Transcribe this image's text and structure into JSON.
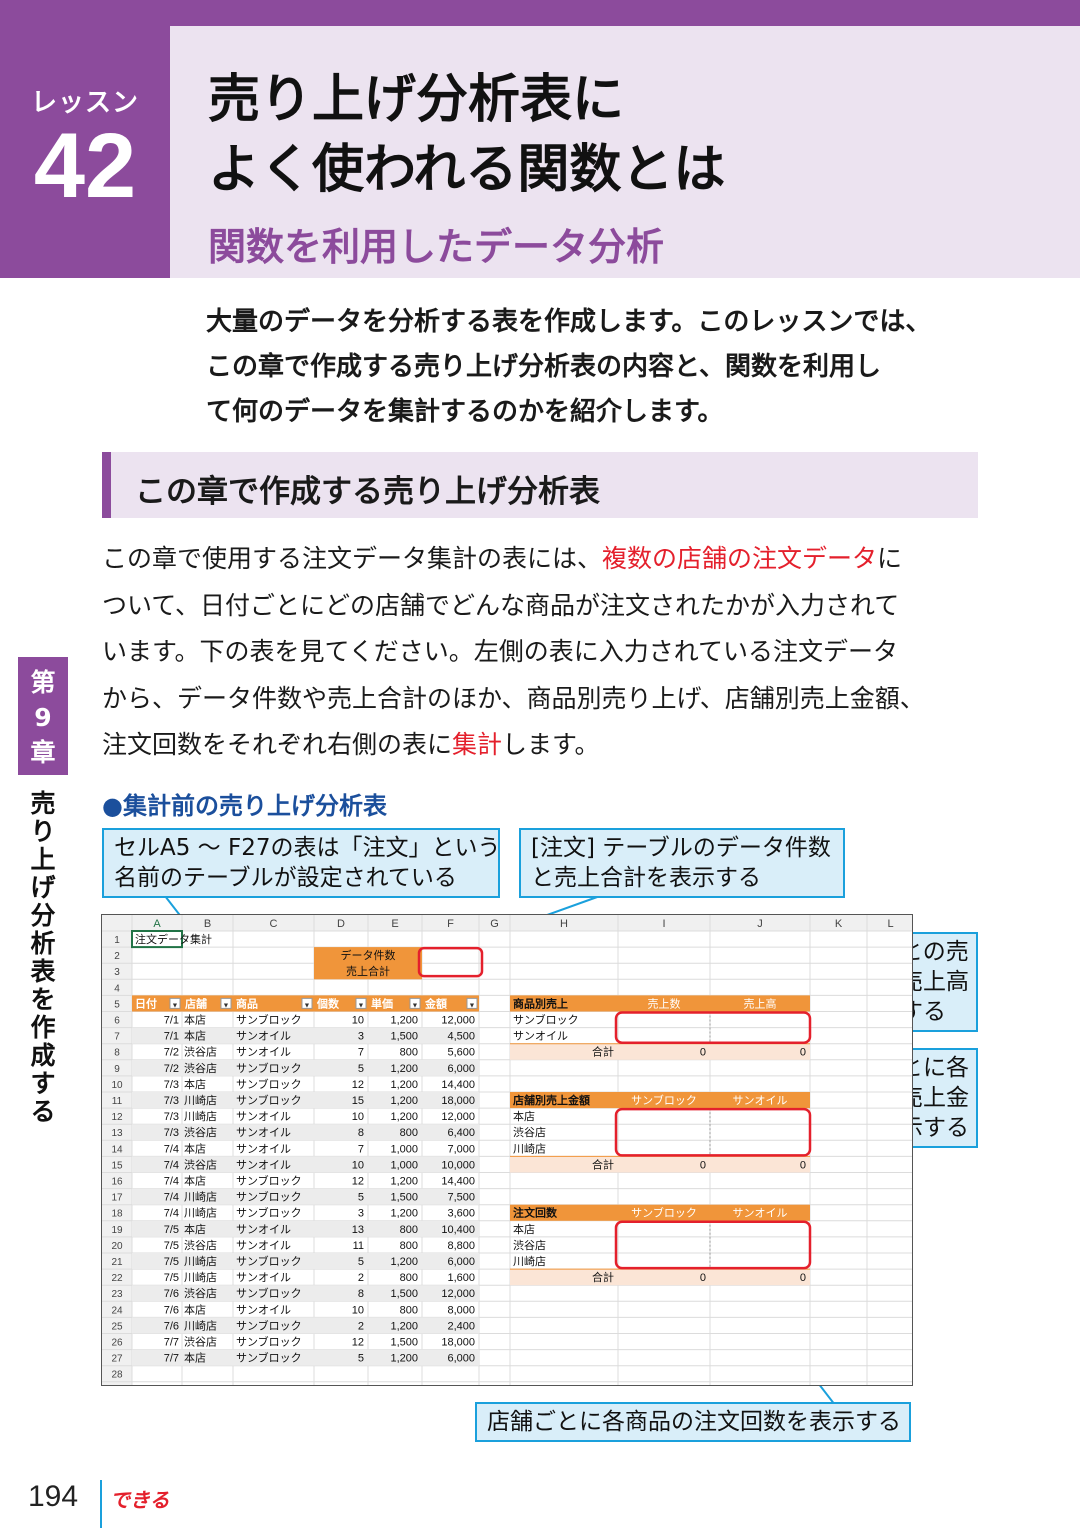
{
  "header": {
    "lesson_label": "レッスン",
    "lesson_number": "42",
    "title_line1": "売り上げ分析表に",
    "title_line2": "よく使われる関数とは",
    "subtitle": "関数を利用したデータ分析"
  },
  "intro": [
    "大量のデータを分析する表を作成します。このレッスンでは、",
    "この章で作成する売り上げ分析表の内容と、関数を利用し",
    "て何のデータを集計するのかを紹介します。"
  ],
  "section_heading": "この章で作成する売り上げ分析表",
  "body": {
    "l1a": "この章で使用する注文データ集計の表には、",
    "l1b": "複数の店舗の注文データ",
    "l1c": "に",
    "l2": "ついて、日付ごとにどの店舗でどんな商品が注文されたかが入力されて",
    "l3": "います。下の表を見てください。左側の表に入力されている注文データ",
    "l4": "から、データ件数や売上合計のほか、商品別売り上げ、店舗別売上金額、",
    "l5a": "注文回数をそれぞれ右側の表に",
    "l5b": "集計",
    "l5c": "します。"
  },
  "side": {
    "chapter_top": "第",
    "chapter_num": "9",
    "chapter_bottom": "章",
    "vertical_title": "売り上げ分析表を作成する"
  },
  "figure_caption": "●集計前の売り上げ分析表",
  "callouts": {
    "table_name": [
      "セルA5 ～ F27の表は「注文」という",
      "名前のテーブルが設定されている"
    ],
    "count_total": [
      "[注文] テーブルのデータ件数",
      "と売上合計を表示する"
    ],
    "by_product": [
      "商品ごとの売",
      "上数と売上高",
      "を表示する"
    ],
    "by_store": [
      "店舗ごとに各",
      "商品の売上金",
      "額を表示する"
    ],
    "order_count": [
      "店舗ごとに各商品の注文回数を表示する"
    ]
  },
  "sheet": {
    "columns": [
      "A",
      "B",
      "C",
      "D",
      "E",
      "F",
      "G",
      "H",
      "I",
      "J",
      "K",
      "L"
    ],
    "a1": "注文データ集計",
    "summary_labels": [
      "データ件数",
      "売上合計"
    ],
    "table_headers": [
      "日付",
      "店舗",
      "商品",
      "個数",
      "単価",
      "金額"
    ],
    "rows": [
      [
        "7/1",
        "本店",
        "サンブロック",
        "10",
        "1,200",
        "12,000"
      ],
      [
        "7/1",
        "本店",
        "サンオイル",
        "3",
        "1,500",
        "4,500"
      ],
      [
        "7/2",
        "渋谷店",
        "サンオイル",
        "7",
        "800",
        "5,600"
      ],
      [
        "7/2",
        "渋谷店",
        "サンブロック",
        "5",
        "1,200",
        "6,000"
      ],
      [
        "7/3",
        "本店",
        "サンブロック",
        "12",
        "1,200",
        "14,400"
      ],
      [
        "7/3",
        "川崎店",
        "サンブロック",
        "15",
        "1,200",
        "18,000"
      ],
      [
        "7/3",
        "川崎店",
        "サンオイル",
        "10",
        "1,200",
        "12,000"
      ],
      [
        "7/3",
        "渋谷店",
        "サンオイル",
        "8",
        "800",
        "6,400"
      ],
      [
        "7/4",
        "本店",
        "サンオイル",
        "7",
        "1,000",
        "7,000"
      ],
      [
        "7/4",
        "渋谷店",
        "サンオイル",
        "10",
        "1,000",
        "10,000"
      ],
      [
        "7/4",
        "本店",
        "サンブロック",
        "12",
        "1,200",
        "14,400"
      ],
      [
        "7/4",
        "川崎店",
        "サンブロック",
        "5",
        "1,500",
        "7,500"
      ],
      [
        "7/4",
        "川崎店",
        "サンブロック",
        "3",
        "1,200",
        "3,600"
      ],
      [
        "7/5",
        "本店",
        "サンオイル",
        "13",
        "800",
        "10,400"
      ],
      [
        "7/5",
        "渋谷店",
        "サンオイル",
        "11",
        "800",
        "8,800"
      ],
      [
        "7/5",
        "川崎店",
        "サンブロック",
        "5",
        "1,200",
        "6,000"
      ],
      [
        "7/5",
        "川崎店",
        "サンオイル",
        "2",
        "800",
        "1,600"
      ],
      [
        "7/6",
        "渋谷店",
        "サンブロック",
        "8",
        "1,500",
        "12,000"
      ],
      [
        "7/6",
        "本店",
        "サンオイル",
        "10",
        "800",
        "8,000"
      ],
      [
        "7/6",
        "川崎店",
        "サンブロック",
        "2",
        "1,200",
        "2,400"
      ],
      [
        "7/7",
        "渋谷店",
        "サンブロック",
        "12",
        "1,500",
        "18,000"
      ],
      [
        "7/7",
        "本店",
        "サンブロック",
        "5",
        "1,200",
        "6,000"
      ]
    ],
    "product_table": {
      "headers": [
        "商品別売上",
        "売上数",
        "売上高"
      ],
      "rows": [
        "サンブロック",
        "サンオイル"
      ],
      "total_label": "合計",
      "totals": [
        "0",
        "0"
      ]
    },
    "store_amount_table": {
      "headers": [
        "店舗別売上金額",
        "サンブロック",
        "サンオイル"
      ],
      "rows": [
        "本店",
        "渋谷店",
        "川崎店"
      ],
      "total_label": "合計",
      "totals": [
        "0",
        "0"
      ]
    },
    "order_count_table": {
      "headers": [
        "注文回数",
        "サンブロック",
        "サンオイル"
      ],
      "rows": [
        "本店",
        "渋谷店",
        "川崎店"
      ],
      "total_label": "合計",
      "totals": [
        "0",
        "0"
      ]
    }
  },
  "footer": {
    "page_number": "194",
    "brand": "できる"
  },
  "colors": {
    "purple": "#8c4b9c",
    "lavender": "#ece3f0",
    "red": "#e4202c",
    "callout_border": "#1aa0dc",
    "table_orange": "#f0953a"
  }
}
